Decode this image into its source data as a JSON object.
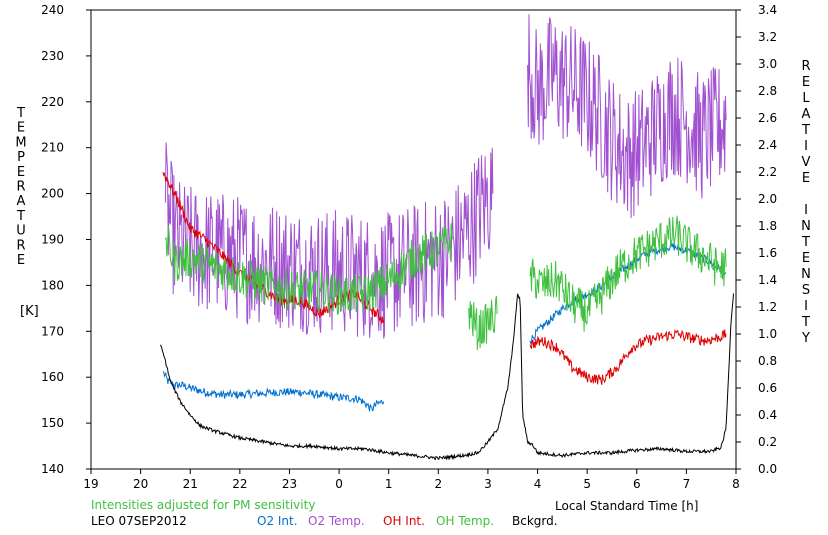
{
  "chart_data": {
    "type": "line",
    "left_axis_label": "TEMPERATURE",
    "left_axis_unit": "[K]",
    "right_axis_label": "RELATIVE INTENSITY",
    "xlabel": "Local Standard Time [h]",
    "x_ticks": [
      "19",
      "20",
      "21",
      "22",
      "23",
      "0",
      "1",
      "2",
      "3",
      "4",
      "5",
      "6",
      "7",
      "8"
    ],
    "xlim": [
      19,
      32
    ],
    "y_left_ticks": [
      "140",
      "150",
      "160",
      "170",
      "180",
      "190",
      "200",
      "210",
      "220",
      "230",
      "240"
    ],
    "ylim_left": [
      140,
      240
    ],
    "y_right_ticks": [
      "0.0",
      "0.2",
      "0.4",
      "0.6",
      "0.8",
      "1.0",
      "1.2",
      "1.4",
      "1.6",
      "1.8",
      "2.0",
      "2.2",
      "2.4",
      "2.6",
      "2.8",
      "3.0",
      "3.2",
      "3.4"
    ],
    "ylim_right": [
      0,
      3.4
    ],
    "note": "Intensities adjusted for PM sensitivity",
    "station": "LEO 07SEP2012",
    "colors": {
      "o2_int": "#0070d0",
      "o2_temp": "#a050d0",
      "oh_int": "#e00000",
      "oh_temp": "#40c040",
      "bckgrd": "#000000",
      "note": "#40c040"
    },
    "series": [
      {
        "name": "O2 Int.",
        "axis": "right",
        "noise": 0.03,
        "segments": [
          {
            "x": [
              20.45,
              20.55,
              20.7,
              20.85,
              21.0,
              21.3,
              21.6,
              22.0,
              22.4,
              22.8,
              23.2,
              23.6,
              24.0,
              24.4,
              24.55,
              24.65,
              24.75,
              24.9
            ],
            "y": [
              0.72,
              0.65,
              0.62,
              0.62,
              0.6,
              0.57,
              0.55,
              0.55,
              0.56,
              0.57,
              0.57,
              0.55,
              0.53,
              0.52,
              0.48,
              0.44,
              0.48,
              0.5
            ]
          },
          {
            "x": [
              27.85,
              28.0,
              28.3,
              28.6,
              28.9,
              29.2,
              29.5,
              29.8,
              30.1,
              30.4,
              30.7,
              31.0,
              31.2,
              31.4,
              31.6,
              31.8
            ],
            "y": [
              0.95,
              1.02,
              1.12,
              1.22,
              1.28,
              1.33,
              1.42,
              1.5,
              1.58,
              1.62,
              1.65,
              1.62,
              1.58,
              1.55,
              1.5,
              1.45
            ]
          }
        ]
      },
      {
        "name": "O2 Temp.",
        "axis": "left",
        "noise": 14,
        "segments": [
          {
            "x": [
              20.5,
              20.7,
              21.0,
              21.5,
              22.0,
              22.5,
              23.0,
              23.5,
              24.0,
              24.5,
              25.0,
              25.5,
              26.0,
              26.3,
              26.6,
              26.8,
              27.0,
              27.1
            ],
            "y": [
              198,
              190,
              188,
              187,
              186,
              185,
              184,
              183,
              183,
              182,
              182,
              184,
              186,
              188,
              192,
              196,
              199,
              200
            ]
          },
          {
            "x": [
              27.8,
              28.0,
              28.3,
              28.6,
              28.9,
              29.2,
              29.5,
              29.8,
              30.1,
              30.4,
              30.7,
              31.0,
              31.3,
              31.6,
              31.8
            ],
            "y": [
              228,
              222,
              226,
              224,
              222,
              218,
              212,
              208,
              210,
              214,
              218,
              216,
              212,
              214,
              216
            ]
          }
        ]
      },
      {
        "name": "OH Int.",
        "axis": "right",
        "noise": 0.04,
        "segments": [
          {
            "x": [
              20.45,
              20.6,
              20.8,
              21.0,
              21.3,
              21.6,
              22.0,
              22.4,
              22.8,
              23.2,
              23.6,
              24.0,
              24.3,
              24.6,
              24.9
            ],
            "y": [
              2.2,
              2.1,
              1.95,
              1.78,
              1.7,
              1.6,
              1.45,
              1.35,
              1.25,
              1.25,
              1.15,
              1.25,
              1.3,
              1.2,
              1.1
            ]
          },
          {
            "x": [
              27.85,
              28.1,
              28.4,
              28.7,
              29.0,
              29.3,
              29.6,
              29.9,
              30.2,
              30.5,
              30.8,
              31.1,
              31.4,
              31.7,
              31.8
            ],
            "y": [
              0.92,
              0.95,
              0.9,
              0.75,
              0.68,
              0.66,
              0.75,
              0.9,
              0.95,
              0.98,
              1.0,
              0.97,
              0.95,
              0.98,
              1.0
            ]
          }
        ]
      },
      {
        "name": "OH Temp.",
        "axis": "left",
        "noise": 4.5,
        "segments": [
          {
            "x": [
              20.5,
              20.7,
              21.0,
              21.5,
              22.0,
              22.5,
              23.0,
              23.5,
              24.0,
              24.5,
              25.0,
              25.5,
              26.0,
              26.3
            ],
            "y": [
              190,
              185,
              186,
              184,
              182,
              180,
              179,
              179,
              178,
              178,
              181,
              186,
              188,
              190
            ]
          },
          {
            "x": [
              26.6,
              26.8,
              27.0,
              27.2
            ],
            "y": [
              175,
              170,
              172,
              174
            ]
          },
          {
            "x": [
              27.85,
              28.1,
              28.4,
              28.7,
              29.0,
              29.3,
              29.6,
              29.9,
              30.2,
              30.5,
              30.8,
              31.1,
              31.4,
              31.6,
              31.8
            ],
            "y": [
              182,
              180,
              181,
              176,
              174,
              178,
              183,
              186,
              188,
              190,
              191,
              188,
              186,
              184,
              184
            ]
          }
        ]
      },
      {
        "name": "Bckgrd.",
        "axis": "right",
        "noise": 0.012,
        "segments": [
          {
            "x": [
              20.4,
              20.5,
              20.6,
              20.8,
              21.0,
              21.2,
              21.5,
              22.0,
              22.5,
              23.0,
              23.5,
              24.0,
              24.5,
              25.0,
              25.5,
              26.0,
              26.5,
              26.8,
              27.0,
              27.2,
              27.4,
              27.5,
              27.6,
              27.65,
              27.7,
              27.75,
              27.8,
              27.9,
              28.0,
              28.5,
              29.0,
              29.5,
              30.0,
              30.5,
              31.0,
              31.5,
              31.7,
              31.8,
              31.85,
              31.9,
              31.95
            ],
            "y": [
              0.92,
              0.8,
              0.65,
              0.5,
              0.4,
              0.32,
              0.28,
              0.23,
              0.2,
              0.17,
              0.17,
              0.15,
              0.15,
              0.12,
              0.1,
              0.08,
              0.1,
              0.12,
              0.2,
              0.3,
              0.6,
              0.9,
              1.3,
              1.25,
              0.4,
              0.3,
              0.2,
              0.18,
              0.12,
              0.1,
              0.12,
              0.12,
              0.14,
              0.15,
              0.13,
              0.13,
              0.16,
              0.3,
              0.7,
              1.1,
              1.3
            ]
          }
        ]
      }
    ]
  }
}
